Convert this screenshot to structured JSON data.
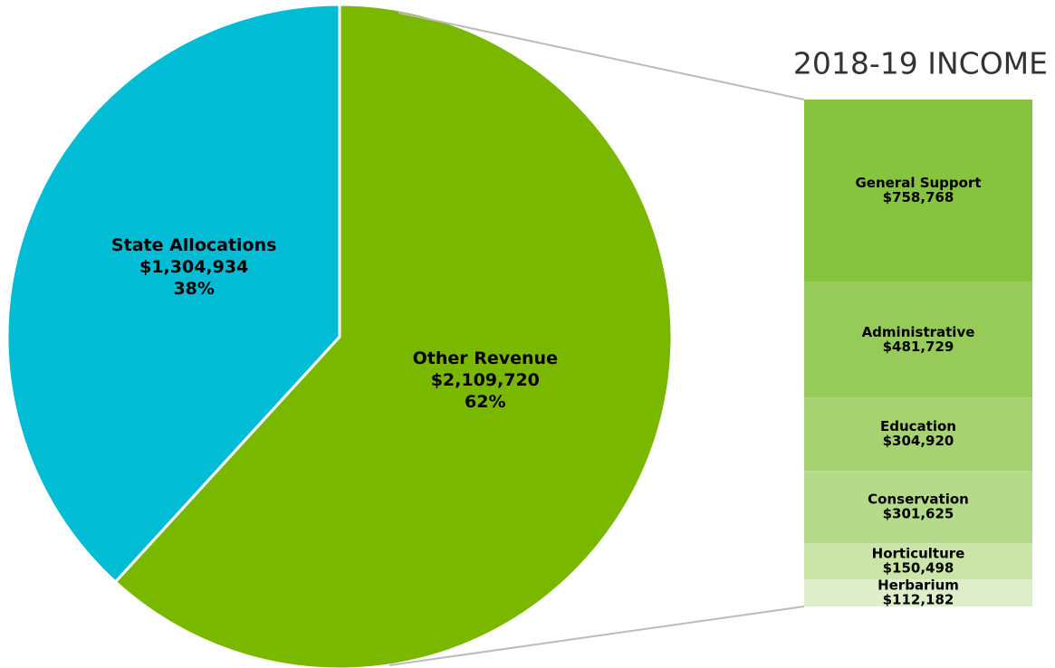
{
  "chart_data": {
    "type": "bar-of-pie",
    "title": "2018-19 INCOME",
    "pie": {
      "categories": [
        "Other Revenue",
        "State Allocations"
      ],
      "values": [
        2109720,
        1304934
      ],
      "value_labels": [
        "$2,109,720",
        "$1,304,934"
      ],
      "percent_labels": [
        "62%",
        "38%"
      ],
      "colors": [
        "#7ab800",
        "#00bcd4"
      ]
    },
    "bar": {
      "categories": [
        "General Support",
        "Administrative",
        "Education",
        "Conservation",
        "Horticulture",
        "Herbarium"
      ],
      "values": [
        758768,
        481729,
        304920,
        301625,
        150498,
        112182
      ],
      "value_labels": [
        "$758,768",
        "$481,729",
        "$304,920",
        "$301,625",
        "$150,498",
        "$112,182"
      ],
      "colors": [
        "#86c440",
        "#97cb59",
        "#a6d271",
        "#b5da8a",
        "#cbe5a9",
        "#ddeec8"
      ]
    }
  }
}
